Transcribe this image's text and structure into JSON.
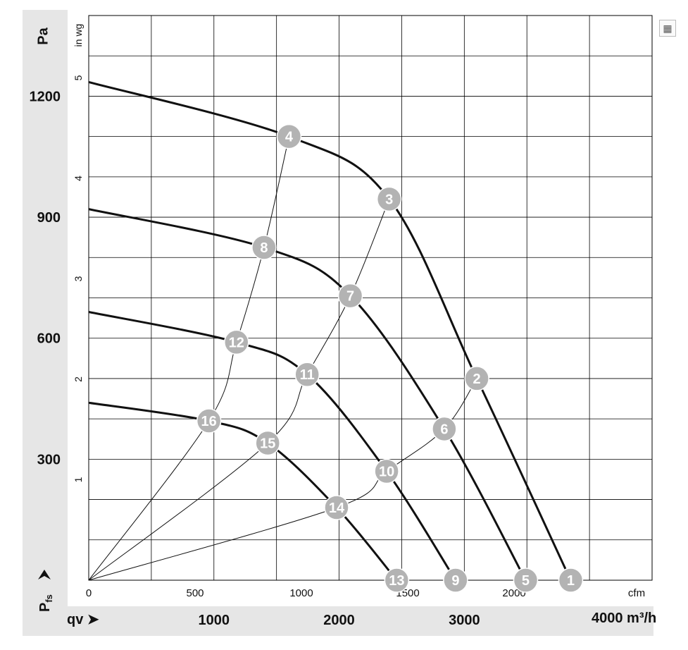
{
  "chart_data": {
    "type": "line",
    "y_left_unit": "Pa",
    "y_left_ticks": [
      300,
      600,
      900,
      1200
    ],
    "y_right_unit": "in wg",
    "y_right_ticks": [
      1,
      2,
      3,
      4,
      5
    ],
    "x_top_unit": "cfm",
    "x_top_ticks": [
      "0",
      "500",
      "1000",
      "1500",
      "2000"
    ],
    "x_bottom_ticks": [
      "1000",
      "2000",
      "3000"
    ],
    "x_bottom_unit_label": "4000 m³/h",
    "ylabel": "Pfs",
    "xlabel": "qv",
    "xlim_m3h": [
      0,
      4500
    ],
    "ylim_pa": [
      0,
      1400
    ],
    "grid": true,
    "series": [
      {
        "x": [
          0,
          1600,
          2400,
          3100,
          3850
        ],
        "y": [
          1235,
          1100,
          945,
          500,
          0
        ]
      },
      {
        "x": [
          0,
          1400,
          2090,
          2840,
          3490
        ],
        "y": [
          920,
          825,
          705,
          375,
          0
        ]
      },
      {
        "x": [
          0,
          1180,
          1745,
          2380,
          2930
        ],
        "y": [
          665,
          590,
          510,
          270,
          0
        ]
      },
      {
        "x": [
          0,
          960,
          1430,
          1980,
          2460
        ],
        "y": [
          440,
          395,
          340,
          180,
          0
        ]
      }
    ],
    "system_curves": [
      {
        "points": [
          "4",
          "8",
          "12",
          "16"
        ],
        "x": [
          0,
          960,
          1180,
          1400,
          1600
        ],
        "y": [
          0,
          395,
          590,
          825,
          1100
        ]
      },
      {
        "points": [
          "3",
          "7",
          "11",
          "15"
        ],
        "x": [
          0,
          1430,
          1745,
          2090,
          2400
        ],
        "y": [
          0,
          340,
          510,
          705,
          945
        ]
      },
      {
        "points": [
          "2",
          "6",
          "10",
          "14"
        ],
        "x": [
          0,
          1980,
          2380,
          2840,
          3100
        ],
        "y": [
          0,
          180,
          270,
          375,
          500
        ]
      }
    ],
    "points": [
      {
        "label": "1",
        "x": 3850,
        "y": 0
      },
      {
        "label": "2",
        "x": 3100,
        "y": 500
      },
      {
        "label": "3",
        "x": 2400,
        "y": 945
      },
      {
        "label": "4",
        "x": 1600,
        "y": 1100
      },
      {
        "label": "5",
        "x": 3490,
        "y": 0
      },
      {
        "label": "6",
        "x": 2840,
        "y": 375
      },
      {
        "label": "7",
        "x": 2090,
        "y": 705
      },
      {
        "label": "8",
        "x": 1400,
        "y": 825
      },
      {
        "label": "9",
        "x": 2930,
        "y": 0
      },
      {
        "label": "10",
        "x": 2380,
        "y": 270
      },
      {
        "label": "11",
        "x": 1745,
        "y": 510
      },
      {
        "label": "12",
        "x": 1180,
        "y": 590
      },
      {
        "label": "13",
        "x": 2460,
        "y": 0
      },
      {
        "label": "14",
        "x": 1980,
        "y": 180
      },
      {
        "label": "15",
        "x": 1430,
        "y": 340
      },
      {
        "label": "16",
        "x": 960,
        "y": 395
      }
    ],
    "point_color": "#b3b3b3",
    "curve_color": "#111111",
    "grid_color": "#000000"
  }
}
